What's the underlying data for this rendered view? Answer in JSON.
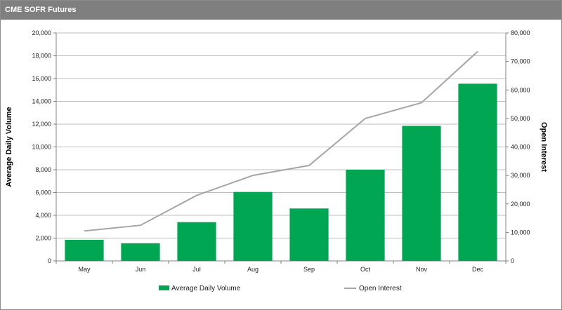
{
  "chart_data": {
    "type": "bar",
    "title": "CME SOFR Futures",
    "categories": [
      "May",
      "Jun",
      "Jul",
      "Aug",
      "Sep",
      "Oct",
      "Nov",
      "Dec"
    ],
    "series": [
      {
        "name": "Average Daily Volume",
        "type": "bar",
        "axis": "left",
        "color": "#00a651",
        "values": [
          1850,
          1550,
          3400,
          6050,
          4600,
          8000,
          11850,
          15550
        ]
      },
      {
        "name": "Open Interest",
        "type": "line",
        "axis": "right",
        "color": "#a6a6a6",
        "values": [
          10500,
          12500,
          23000,
          30000,
          33500,
          50000,
          55500,
          73500
        ]
      }
    ],
    "ylabel": "Average Daily Volume",
    "y2label": "Open Interest",
    "ylim": [
      0,
      20000
    ],
    "y2lim": [
      0,
      80000
    ],
    "yticks": [
      "0",
      "2,000",
      "4,000",
      "6,000",
      "8,000",
      "10,000",
      "12,000",
      "14,000",
      "16,000",
      "18,000",
      "20,000"
    ],
    "y2ticks": [
      "0",
      "10,000",
      "20,000",
      "30,000",
      "40,000",
      "50,000",
      "60,000",
      "70,000",
      "80,000"
    ],
    "grid": true,
    "legend_position": "bottom"
  }
}
